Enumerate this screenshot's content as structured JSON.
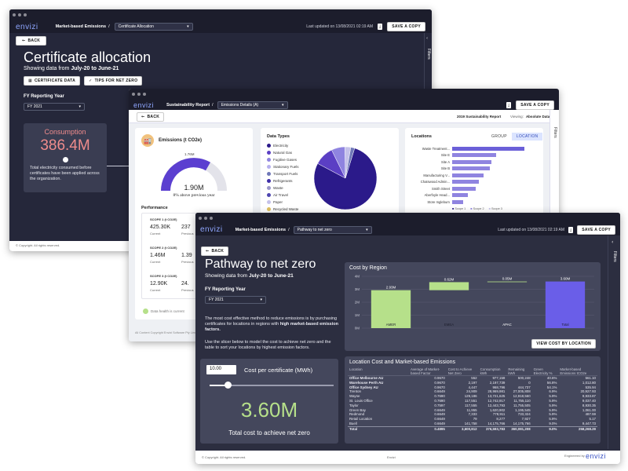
{
  "w1": {
    "logo": "envizi",
    "breadcrumb": "Market-based Emissions",
    "sep": "/",
    "dropdown": "Certificate Allocation",
    "updated": "Last updated on 13/08/2021 02:19 AM",
    "save": "SAVE A COPY",
    "back": "BACK",
    "title": "Certificate allocation",
    "subtitle_pre": "Showing data from ",
    "subtitle_bold": "July-20 to June-21",
    "btn_cert": "CERTIFICATE DATA",
    "btn_tips": "TIPS FOR NET ZERO",
    "fy_label": "FY Reporting Year",
    "fy_value": "FY 2021",
    "consumption_title": "Consumption",
    "consumption_value": "386.4M",
    "consumption_desc": "Total electricity consumed before certificates have been applied across the organization.",
    "filters": "Filters",
    "footer": "© Copyright. All rights reserved."
  },
  "w2": {
    "logo": "envizi",
    "breadcrumb": "Sustainability Report",
    "sep": "/",
    "dropdown": "Emissions Details (A)",
    "save": "SAVE A COPY",
    "back": "BACK",
    "report": "2019 Sustainability Report",
    "viewing": "Viewing:",
    "viewing_value": "Absolute Data",
    "emissions_title": "Emissions (t CO2e)",
    "gauge_max": "1.76M",
    "gauge_value": "1.90M",
    "gauge_note": "8% above previous year",
    "performance": "Performance",
    "scopes": [
      {
        "name": "SCOPE 1 (t CO2E)",
        "current": "425.30K",
        "previous": "237",
        "cur_label": "Current",
        "prev_label": "Previous"
      },
      {
        "name": "SCOPE 2 (t CO2E)",
        "current": "1.46M",
        "previous": "1.39",
        "cur_label": "Current",
        "prev_label": "Previous"
      },
      {
        "name": "SCOPE 3 (t CO2E)",
        "current": "12.90K",
        "previous": "24.",
        "cur_label": "Current",
        "prev_label": "Previous"
      }
    ],
    "data_health": "Data health is current",
    "data_types_title": "Data Types",
    "data_types": [
      "Electricity",
      "Natural Gas",
      "Fugitive Gases",
      "Stationary Fuels",
      "Transport Fuels",
      "Refrigerants",
      "Waste",
      "Air Travel",
      "Paper",
      "Recycled Waste"
    ],
    "data_type_colors": [
      "#2b1a8a",
      "#5b3fc4",
      "#8f84e0",
      "#b6b0ee",
      "#6f78b8",
      "#3f2fa8",
      "#9b96c9",
      "#4e46b0",
      "#c5c2ea",
      "#e0c060"
    ],
    "locations_title": "Locations",
    "tab_group": "GROUP",
    "tab_location": "LOCATION",
    "locations": [
      {
        "name": "Waste Treatment...",
        "value": 0.92
      },
      {
        "name": "Site E",
        "value": 0.56
      },
      {
        "name": "Site A",
        "value": 0.5
      },
      {
        "name": "Site B",
        "value": 0.48
      },
      {
        "name": "Manufacturing V...",
        "value": 0.4
      },
      {
        "name": "Chatswood Admin...",
        "value": 0.34
      },
      {
        "name": "Smith Street",
        "value": 0.3
      },
      {
        "name": "Aberfoyle Head...",
        "value": 0.2
      },
      {
        "name": "Store Ingleburn",
        "value": 0.14
      }
    ],
    "legend_scope": [
      "Scope 1",
      "Scope 2",
      "Scope 3"
    ],
    "filters": "Filters",
    "footer": "All Content Copyright Envizi Software Pty Limited"
  },
  "w3": {
    "logo": "envizi",
    "breadcrumb": "Market-based Emissions",
    "sep": "/",
    "dropdown": "Pathway to net zero",
    "updated": "Last updated on 13/08/2021 02:19 AM",
    "save": "SAVE A COPY",
    "back": "BACK",
    "title": "Pathway to net zero",
    "subtitle_pre": "Showing data from ",
    "subtitle_bold": "July-20 to June-21",
    "fy_label": "FY Reporting Year",
    "fy_value": "FY 2021",
    "desc1_pre": "The most cost effective method to reduce emissions is by purchasing certificates for locations in regions with ",
    "desc1_bold": "high market-based emission factors.",
    "desc2": "Use the slicer below to model the cost to achieve net zero and the table to sort your locations by highest emission factors.",
    "cost_input": "10.00",
    "cost_label": "Cost per certificate (MWh)",
    "cost_value": "3.60M",
    "cost_caption": "Total cost to achieve net zero",
    "chart_title": "Cost by Region",
    "view_btn": "VIEW COST BY LOCATION",
    "table_title": "Location Cost and Market-based Emissions",
    "columns": [
      "Location",
      "Average of Market-based Factor",
      "Cost to Achieve Net Zero",
      "Consumption kWh",
      "Remaining kWh",
      "Green Electricity %",
      "Market-based Emissions tCO2e"
    ],
    "rows": [
      [
        "Office Melbourne AU",
        "0.9670",
        "552",
        "977,159",
        "500,248",
        "40.6%",
        "561.10"
      ],
      [
        "Warehouse Perth AU",
        "0.9670",
        "2,197",
        "2,197,739",
        "0",
        "56.8%",
        "1,012.80"
      ],
      [
        "Office Sydney AU",
        "0.9670",
        "4,447",
        "968,796",
        "444,737",
        "54.1%",
        "535.94"
      ],
      [
        "Trenton",
        "0.6649",
        "24,909",
        "28,969,981",
        "27,005,808",
        "6.9%",
        "20,927.93"
      ],
      [
        "Wayne",
        "0.7690",
        "129,186",
        "13,721,625",
        "12,918,560",
        "5.9%",
        "9,933.87"
      ],
      [
        "St. Louis Office",
        "0.7690",
        "117,551",
        "12,742,917",
        "11,755,110",
        "5.9%",
        "9,037.40"
      ],
      [
        "Taylor",
        "0.7597",
        "117,555",
        "12,443,793",
        "11,755,505",
        "5.9%",
        "8,930.35"
      ],
      [
        "Green Bay",
        "0.6649",
        "11,955",
        "1,620,902",
        "1,195,545",
        "5.9%",
        "1,061.00"
      ],
      [
        "Redmond",
        "0.6649",
        "7,333",
        "778,911",
        "733,324",
        "5.9%",
        "487.59"
      ],
      [
        "Retail Location",
        "0.6649",
        "79",
        "8,277",
        "7,927",
        "5.9%",
        "5.17"
      ],
      [
        "Buell",
        "0.6649",
        "141,758",
        "14,175,766",
        "14,175,766",
        "9.0%",
        "9,447.73"
      ]
    ],
    "total": [
      "Total",
      "0.4895",
      "3,600,812",
      "376,593,783",
      "360,081,208",
      "9.0%",
      "258,268.29"
    ],
    "filters": "Filters",
    "footer": "© Copyright. All rights reserved.",
    "footer_center": "Envizi",
    "engineered": "Engineered by",
    "engineered_logo": "envizi"
  },
  "chart_data": [
    {
      "type": "bar",
      "title": "Cost by Region",
      "categories": [
        "AMER",
        "EMEA",
        "APAC",
        "Total"
      ],
      "bars": [
        {
          "category": "AMER",
          "start": 0,
          "end": 2.93,
          "label": "2.93M"
        },
        {
          "category": "EMEA",
          "start": 2.93,
          "end": 3.55,
          "label": "0.62M"
        },
        {
          "category": "APAC",
          "start": 3.55,
          "end": 3.6,
          "label": "0.05M"
        },
        {
          "category": "Total",
          "start": 0,
          "end": 3.6,
          "label": "3.60M"
        }
      ],
      "y_ticks": [
        "0M",
        "1M",
        "2M",
        "3M",
        "4M"
      ],
      "ylim": [
        0,
        4
      ],
      "colors": {
        "increase": "#b6e08a",
        "total": "#6a5ee8"
      }
    },
    {
      "type": "pie",
      "title": "Data Types",
      "labels": [
        "Electricity",
        "Natural Gas",
        "Fugitive Gases",
        "Stationary Fuels",
        "Transport Fuels"
      ],
      "values": [
        78,
        10,
        7,
        3,
        2
      ]
    }
  ]
}
